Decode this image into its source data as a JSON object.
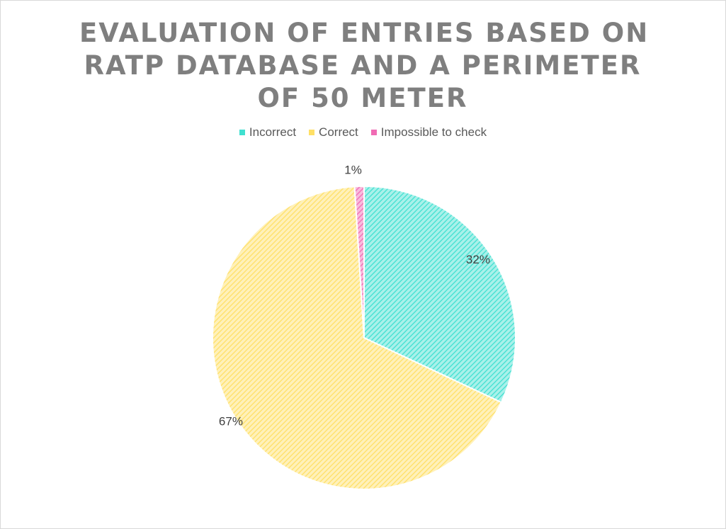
{
  "chart_data": {
    "type": "pie",
    "title_lines": [
      "EVALUATION OF ENTRIES BASED ON",
      "RATP DATABASE AND A PERIMETER",
      "OF 50 METER"
    ],
    "categories": [
      "Incorrect",
      "Correct",
      "Impossible to check"
    ],
    "values": [
      32,
      67,
      1
    ],
    "data_labels": [
      "32%",
      "67%",
      "1%"
    ],
    "colors": [
      "#40e0d0",
      "#ffe066",
      "#f06bb4"
    ],
    "legend_position": "top",
    "fill_pattern": "diagonal-hatch"
  }
}
